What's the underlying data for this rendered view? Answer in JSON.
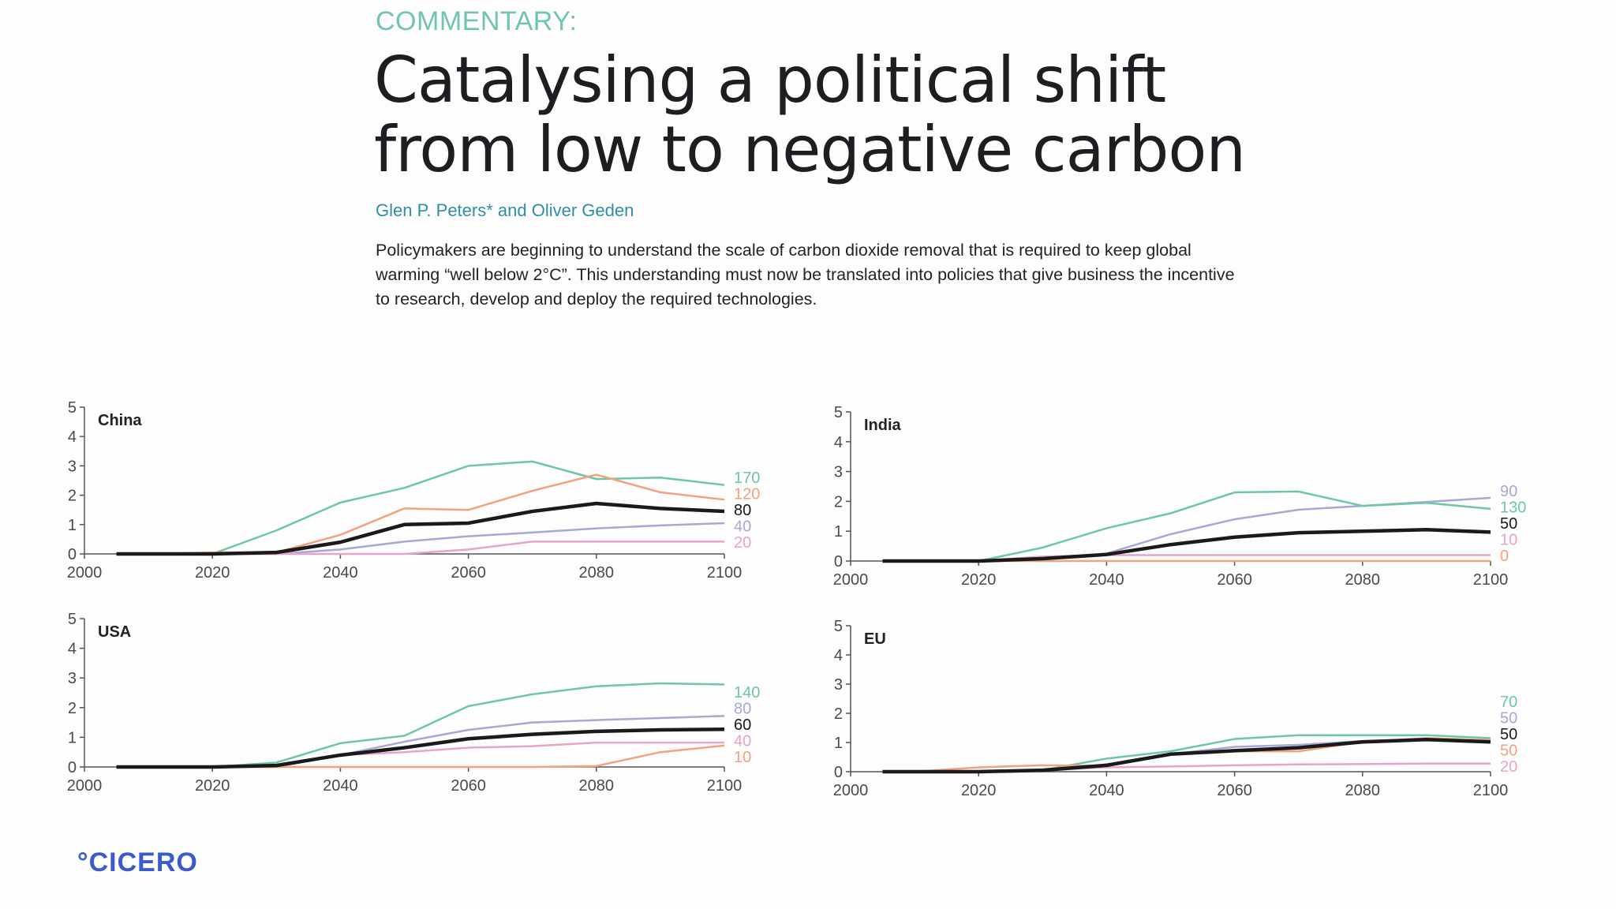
{
  "header": {
    "kicker": "COMMENTARY:",
    "title_line1": "Catalysing a political shift",
    "title_line2": "from low to negative carbon",
    "authors": "Glen P. Peters* and Oliver Geden",
    "abstract": "Policymakers are beginning to understand the scale of carbon dioxide removal that is required to keep global warming “well below 2°C”. This understanding must now be translated into policies that give business the incentive to research, develop and deploy the required technologies."
  },
  "footer": {
    "logo": "°CICERO"
  },
  "colors": {
    "teal": "#6cc6a8",
    "orange": "#f2a27e",
    "black": "#1a1a1a",
    "lavender": "#a7a8d4",
    "pink": "#e7a3c9"
  },
  "chart_data": [
    {
      "type": "line",
      "title": "China",
      "x": [
        2005,
        2010,
        2020,
        2030,
        2040,
        2050,
        2060,
        2070,
        2080,
        2090,
        2100
      ],
      "xticks": [
        "2000",
        "2020",
        "2040",
        "2060",
        "2080",
        "2100"
      ],
      "yticks": [
        "0",
        "1",
        "2",
        "3",
        "4",
        "5"
      ],
      "xlim": [
        2000,
        2100
      ],
      "ylim": [
        0,
        5
      ],
      "series": [
        {
          "name": "170",
          "color": "teal",
          "width": 2.5,
          "values": [
            0,
            0,
            0,
            0.8,
            1.75,
            2.25,
            3.0,
            3.15,
            2.55,
            2.6,
            2.35
          ]
        },
        {
          "name": "120",
          "color": "orange",
          "width": 2.5,
          "values": [
            0,
            0,
            0.05,
            0.05,
            0.65,
            1.55,
            1.5,
            2.15,
            2.7,
            2.1,
            1.85
          ]
        },
        {
          "name": "80",
          "color": "black",
          "width": 4.5,
          "values": [
            0,
            0,
            0,
            0.05,
            0.4,
            1.0,
            1.05,
            1.45,
            1.72,
            1.55,
            1.45
          ]
        },
        {
          "name": "40",
          "color": "lavender",
          "width": 2.5,
          "values": [
            0,
            0,
            0,
            0,
            0.15,
            0.42,
            0.6,
            0.73,
            0.87,
            0.97,
            1.05
          ]
        },
        {
          "name": "20",
          "color": "pink",
          "width": 2.5,
          "values": [
            0,
            0,
            0,
            0,
            0,
            0,
            0.15,
            0.42,
            0.42,
            0.42,
            0.42
          ]
        }
      ]
    },
    {
      "type": "line",
      "title": "India",
      "x": [
        2005,
        2010,
        2020,
        2030,
        2040,
        2050,
        2060,
        2070,
        2080,
        2090,
        2100
      ],
      "xticks": [
        "2000",
        "2020",
        "2040",
        "2060",
        "2080",
        "2100"
      ],
      "yticks": [
        "0",
        "1",
        "2",
        "3",
        "4",
        "5"
      ],
      "xlim": [
        2000,
        2100
      ],
      "ylim": [
        0,
        5
      ],
      "series": [
        {
          "name": "90",
          "color": "lavender",
          "width": 2.5,
          "values": [
            0,
            0,
            0,
            0.05,
            0.25,
            0.9,
            1.4,
            1.72,
            1.85,
            1.98,
            2.12
          ]
        },
        {
          "name": "130",
          "color": "teal",
          "width": 2.5,
          "values": [
            0,
            0,
            0,
            0.45,
            1.1,
            1.6,
            2.3,
            2.33,
            1.85,
            1.95,
            1.75
          ]
        },
        {
          "name": "50",
          "color": "black",
          "width": 4.5,
          "values": [
            0,
            0,
            0,
            0.08,
            0.22,
            0.55,
            0.8,
            0.95,
            1.0,
            1.05,
            0.97
          ]
        },
        {
          "name": "10",
          "color": "pink",
          "width": 2.5,
          "values": [
            0,
            0,
            0,
            0.15,
            0.2,
            0.2,
            0.2,
            0.2,
            0.2,
            0.2,
            0.2
          ]
        },
        {
          "name": "0",
          "color": "orange",
          "width": 2.5,
          "values": [
            0,
            0,
            0,
            0,
            0,
            0,
            0,
            0,
            0,
            0,
            0
          ]
        }
      ]
    },
    {
      "type": "line",
      "title": "USA",
      "x": [
        2005,
        2010,
        2020,
        2030,
        2040,
        2050,
        2060,
        2070,
        2080,
        2090,
        2100
      ],
      "xticks": [
        "2000",
        "2020",
        "2040",
        "2060",
        "2080",
        "2100"
      ],
      "yticks": [
        "0",
        "1",
        "2",
        "3",
        "4",
        "5"
      ],
      "xlim": [
        2000,
        2100
      ],
      "ylim": [
        0,
        5
      ],
      "series": [
        {
          "name": "140",
          "color": "teal",
          "width": 2.5,
          "values": [
            0,
            0,
            0,
            0.15,
            0.8,
            1.05,
            2.05,
            2.45,
            2.72,
            2.82,
            2.78
          ]
        },
        {
          "name": "80",
          "color": "lavender",
          "width": 2.5,
          "values": [
            0,
            0,
            0,
            0.05,
            0.4,
            0.85,
            1.25,
            1.5,
            1.58,
            1.65,
            1.72
          ]
        },
        {
          "name": "60",
          "color": "black",
          "width": 4.5,
          "values": [
            0,
            0,
            0,
            0.05,
            0.4,
            0.65,
            0.95,
            1.1,
            1.2,
            1.25,
            1.27
          ]
        },
        {
          "name": "40",
          "color": "pink",
          "width": 2.5,
          "values": [
            0,
            0,
            0,
            0,
            0.4,
            0.5,
            0.65,
            0.7,
            0.82,
            0.82,
            0.82
          ]
        },
        {
          "name": "10",
          "color": "orange",
          "width": 2.5,
          "values": [
            0,
            0,
            0,
            0,
            0,
            0,
            0,
            0,
            0.03,
            0.5,
            0.72
          ]
        }
      ]
    },
    {
      "type": "line",
      "title": "EU",
      "x": [
        2005,
        2010,
        2020,
        2030,
        2040,
        2050,
        2060,
        2070,
        2080,
        2090,
        2100
      ],
      "xticks": [
        "2000",
        "2020",
        "2040",
        "2060",
        "2080",
        "2100"
      ],
      "yticks": [
        "0",
        "1",
        "2",
        "3",
        "4",
        "5"
      ],
      "xlim": [
        2000,
        2100
      ],
      "ylim": [
        0,
        5
      ],
      "series": [
        {
          "name": "70",
          "color": "teal",
          "width": 2.5,
          "values": [
            0,
            0,
            0,
            0.05,
            0.45,
            0.7,
            1.12,
            1.25,
            1.25,
            1.25,
            1.15
          ]
        },
        {
          "name": "50",
          "color": "lavender",
          "width": 2.5,
          "values": [
            0,
            0,
            0,
            0.05,
            0.25,
            0.6,
            0.85,
            0.92,
            1.05,
            1.12,
            1.08
          ]
        },
        {
          "name": "50",
          "color": "black",
          "width": 4.5,
          "values": [
            0,
            0,
            0,
            0.05,
            0.22,
            0.6,
            0.72,
            0.82,
            1.02,
            1.1,
            1.02
          ]
        },
        {
          "name": "50",
          "color": "orange",
          "width": 2.5,
          "values": [
            0,
            0,
            0.15,
            0.22,
            0.2,
            0.6,
            0.7,
            0.7,
            1.02,
            1.15,
            1.08
          ]
        },
        {
          "name": "20",
          "color": "pink",
          "width": 2.5,
          "values": [
            0,
            0,
            0,
            0.05,
            0.15,
            0.18,
            0.22,
            0.25,
            0.26,
            0.28,
            0.28
          ]
        }
      ]
    }
  ]
}
